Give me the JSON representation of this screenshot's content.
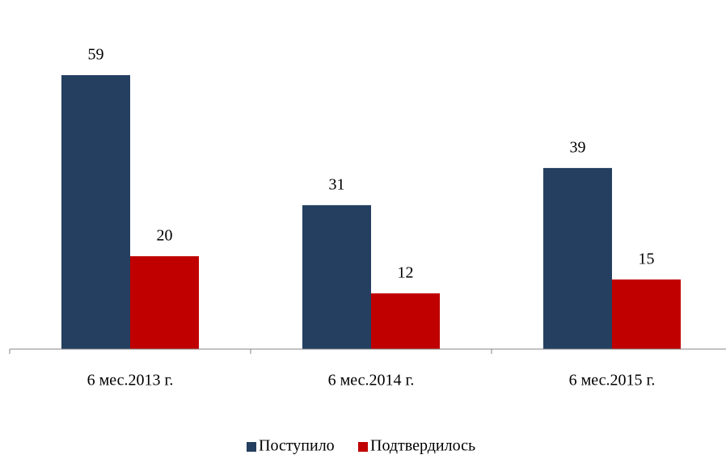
{
  "chart_data": {
    "type": "bar",
    "categories": [
      "6 мес.2013 г.",
      "6 мес.2014 г.",
      "6 мес.2015 г."
    ],
    "series": [
      {
        "name": "Поступило",
        "color": "#243f60",
        "values": [
          59,
          31,
          39
        ]
      },
      {
        "name": "Подтвердилось",
        "color": "#c00000",
        "values": [
          20,
          12,
          15
        ]
      }
    ],
    "ylim": [
      0,
      65
    ],
    "legend": "bottom"
  }
}
